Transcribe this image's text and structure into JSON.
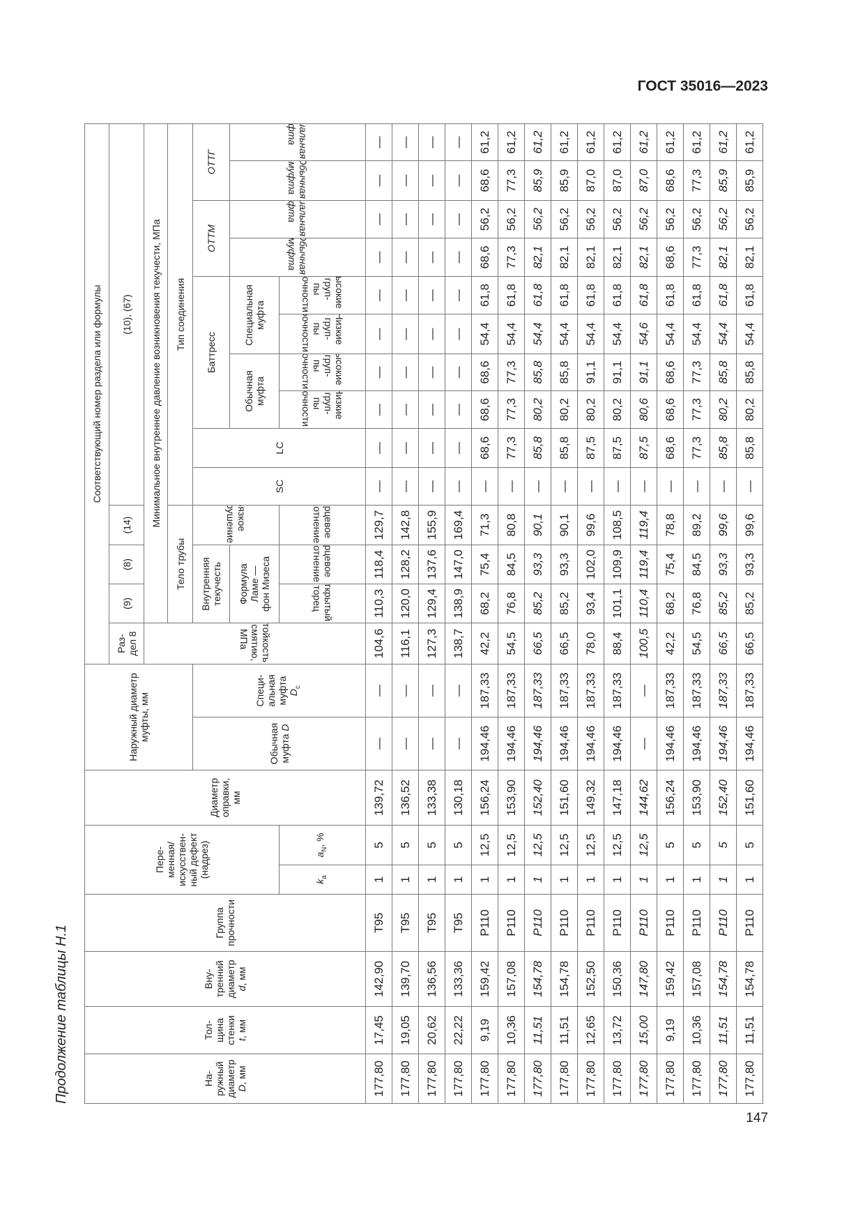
{
  "page": {
    "doc_code": "ГОСТ 35016—2023",
    "page_number": "147",
    "caption": "Продолжение таблицы Н.1"
  },
  "header": {
    "outer_diameter": "На-\nружный\nдиаметр\n",
    "outer_diameter_sym": "D",
    "outer_diameter_unit": ", мм",
    "wall": "Тол-\nщина\nстенки\n",
    "wall_sym": "t",
    "wall_unit": ", мм",
    "inner_diameter": "Вну-\nтренний\nдиаметр\n",
    "inner_diameter_sym": "d",
    "inner_diameter_unit": ", мм",
    "grade": "Группа\nпрочности",
    "defect": "Пере-\nменная/\nискусствен-\nный дефект\n(надрез)",
    "ka_sym": "k",
    "ka_sub": "a",
    "an_sym": "a",
    "an_sub": "N",
    "an_unit": ", %",
    "mandrel": "Диаметр\nоправки,\nмм",
    "coupling_od": "Наружный диаметр\nмуфты, мм",
    "coupling_regular": "Обычная\nмуфта ",
    "coupling_regular_sym": "D",
    "coupling_special": "Специ-\nальная\nмуфта\n",
    "coupling_special_sym": "D",
    "coupling_special_sub": "c",
    "section_ref": "Соответствующий номер раздела или формулы",
    "section8": "Раз-\nдел 8",
    "ref9": "(9)",
    "ref8": "(8)",
    "ref14": "(14)",
    "ref10_67": "(10), (67)",
    "collapse": "Стойкость к смятию, МПа",
    "min_pressure": "Минимальное внутреннее давление возникновения текучести, МПа",
    "pipe_body": "Тело трубы",
    "connection_type": "Тип соединения",
    "internal_yield": "Внутренняя\nтекучесть",
    "ductile": "Вязкое\nразрушение",
    "sc": "SC",
    "lc": "LC",
    "buttress": "Баттресс",
    "ottm": "ОТТМ",
    "ottg": "ОТТГ",
    "lame": "Формула\nЛаме —\nфон Мизеса",
    "regular_coupling": "Обычная\nмуфта",
    "special_coupling": "Специальная\nмуфта",
    "regular_coupling_it": "Обычная муфта",
    "special_coupling_it": "Специальная муфта",
    "open_end": "Открытый\nторец",
    "end_seal": "Торцевое\nуплотнение",
    "low_grades": "Низкие груп-\nпы прочности",
    "high_grades": "Высокие груп-\nпы прочности"
  },
  "rows": [
    {
      "italic": false,
      "cells": [
        "177,80",
        "17,45",
        "142,90",
        "T95",
        "1",
        "5",
        "139,72",
        "—",
        "—",
        "104,6",
        "110,3",
        "118,4",
        "129,7",
        "—",
        "—",
        "—",
        "—",
        "—",
        "—",
        "—",
        "—",
        "—",
        "—"
      ]
    },
    {
      "italic": false,
      "cells": [
        "177,80",
        "19,05",
        "139,70",
        "T95",
        "1",
        "5",
        "136,52",
        "—",
        "—",
        "116,1",
        "120,0",
        "128,2",
        "142,8",
        "—",
        "—",
        "—",
        "—",
        "—",
        "—",
        "—",
        "—",
        "—",
        "—"
      ]
    },
    {
      "italic": false,
      "cells": [
        "177,80",
        "20,62",
        "136,56",
        "T95",
        "1",
        "5",
        "133,38",
        "—",
        "—",
        "127,3",
        "129,4",
        "137,6",
        "155,9",
        "—",
        "—",
        "—",
        "—",
        "—",
        "—",
        "—",
        "—",
        "—",
        "—"
      ]
    },
    {
      "italic": false,
      "cells": [
        "177,80",
        "22,22",
        "133,36",
        "T95",
        "1",
        "5",
        "130,18",
        "—",
        "—",
        "138,7",
        "138,9",
        "147,0",
        "169,4",
        "—",
        "—",
        "—",
        "—",
        "—",
        "—",
        "—",
        "—",
        "—",
        "—"
      ]
    },
    {
      "italic": false,
      "cells": [
        "177,80",
        "9,19",
        "159,42",
        "P110",
        "1",
        "12,5",
        "156,24",
        "194,46",
        "187,33",
        "42,2",
        "68,2",
        "75,4",
        "71,3",
        "—",
        "68,6",
        "68,6",
        "68,6",
        "54,4",
        "61,8",
        "68,6",
        "56,2",
        "68,6",
        "61,2"
      ]
    },
    {
      "italic": false,
      "cells": [
        "177,80",
        "10,36",
        "157,08",
        "P110",
        "1",
        "12,5",
        "153,90",
        "194,46",
        "187,33",
        "54,5",
        "76,8",
        "84,5",
        "80,8",
        "—",
        "77,3",
        "77,3",
        "77,3",
        "54,4",
        "61,8",
        "77,3",
        "56,2",
        "77,3",
        "61,2"
      ]
    },
    {
      "italic": true,
      "cells": [
        "177,80",
        "11,51",
        "154,78",
        "P110",
        "1",
        "12,5",
        "152,40",
        "194,46",
        "187,33",
        "66,5",
        "85,2",
        "93,3",
        "90,1",
        "—",
        "85,8",
        "80,2",
        "85,8",
        "54,4",
        "61,8",
        "82,1",
        "56,2",
        "85,9",
        "61,2"
      ]
    },
    {
      "italic": false,
      "cells": [
        "177,80",
        "11,51",
        "154,78",
        "P110",
        "1",
        "12,5",
        "151,60",
        "194,46",
        "187,33",
        "66,5",
        "85,2",
        "93,3",
        "90,1",
        "—",
        "85,8",
        "80,2",
        "85,8",
        "54,4",
        "61,8",
        "82,1",
        "56,2",
        "85,9",
        "61,2"
      ]
    },
    {
      "italic": false,
      "cells": [
        "177,80",
        "12,65",
        "152,50",
        "P110",
        "1",
        "12,5",
        "149,32",
        "194,46",
        "187,33",
        "78,0",
        "93,4",
        "102,0",
        "99,6",
        "—",
        "87,5",
        "80,2",
        "91,1",
        "54,4",
        "61,8",
        "82,1",
        "56,2",
        "87,0",
        "61,2"
      ]
    },
    {
      "italic": false,
      "cells": [
        "177,80",
        "13,72",
        "150,36",
        "P110",
        "1",
        "12,5",
        "147,18",
        "194,46",
        "187,33",
        "88,4",
        "101,1",
        "109,9",
        "108,5",
        "—",
        "87,5",
        "80,2",
        "91,1",
        "54,4",
        "61,8",
        "82,1",
        "56,2",
        "87,0",
        "61,2"
      ]
    },
    {
      "italic": true,
      "cells": [
        "177,80",
        "15,00",
        "147,80",
        "P110",
        "1",
        "12,5",
        "144,62",
        "—",
        "—",
        "100,5",
        "110,4",
        "119,4",
        "119,4",
        "—",
        "87,5",
        "80,6",
        "91,1",
        "54,6",
        "61,8",
        "82,1",
        "56,2",
        "87,0",
        "61,2"
      ]
    },
    {
      "italic": false,
      "cells": [
        "177,80",
        "9,19",
        "159,42",
        "P110",
        "1",
        "5",
        "156,24",
        "194,46",
        "187,33",
        "42,2",
        "68,2",
        "75,4",
        "78,8",
        "—",
        "68,6",
        "68,6",
        "68,6",
        "54,4",
        "61,8",
        "68,6",
        "56,2",
        "68,6",
        "61,2"
      ]
    },
    {
      "italic": false,
      "cells": [
        "177,80",
        "10,36",
        "157,08",
        "P110",
        "1",
        "5",
        "153,90",
        "194,46",
        "187,33",
        "54,5",
        "76,8",
        "84,5",
        "89,2",
        "—",
        "77,3",
        "77,3",
        "77,3",
        "54,4",
        "61,8",
        "77,3",
        "56,2",
        "77,3",
        "61,2"
      ]
    },
    {
      "italic": true,
      "cells": [
        "177,80",
        "11,51",
        "154,78",
        "P110",
        "1",
        "5",
        "152,40",
        "194,46",
        "187,33",
        "66,5",
        "85,2",
        "93,3",
        "99,6",
        "—",
        "85,8",
        "80,2",
        "85,8",
        "54,4",
        "61,8",
        "82,1",
        "56,2",
        "85,9",
        "61,2"
      ]
    },
    {
      "italic": false,
      "cells": [
        "177,80",
        "11,51",
        "154,78",
        "P110",
        "1",
        "5",
        "151,60",
        "194,46",
        "187,33",
        "66,5",
        "85,2",
        "93,3",
        "99,6",
        "—",
        "85,8",
        "80,2",
        "85,8",
        "54,4",
        "61,8",
        "82,1",
        "56,2",
        "85,9",
        "61,2"
      ]
    }
  ]
}
